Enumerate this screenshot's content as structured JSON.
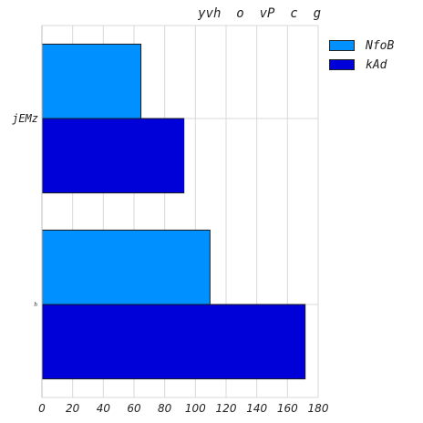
{
  "chart_data": {
    "type": "bar",
    "orientation": "horizontal",
    "title": "yvh  o  vP  c  g",
    "categories": [
      "jEMz",
      "h"
    ],
    "series": [
      {
        "name": "NfoB",
        "color": "#0090ff",
        "values": [
          64.5,
          109.5
        ]
      },
      {
        "name": "kAd",
        "color": "#0000d9",
        "values": [
          92.5,
          171.5
        ]
      }
    ],
    "xlim": [
      0,
      180
    ],
    "xticks": [
      0,
      20,
      40,
      60,
      80,
      100,
      120,
      140,
      160,
      180
    ],
    "xlabel": "",
    "ylabel": "",
    "grid": true,
    "legend_position": "upper-right-outside"
  }
}
